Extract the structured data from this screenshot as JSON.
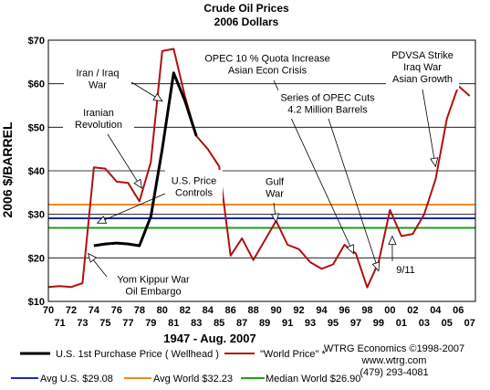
{
  "chart_data": {
    "type": "line",
    "title": "Crude Oil Prices",
    "subtitle": "2006 Dollars",
    "ylabel": "2006 $/BARREL",
    "xlabel": "1947 - Aug. 2007",
    "ylim": [
      10,
      70
    ],
    "xlim": [
      70,
      107.5
    ],
    "yticks": [
      10,
      20,
      30,
      40,
      50,
      60,
      70
    ],
    "ytick_labels": [
      "$10",
      "$20",
      "$30",
      "$40",
      "$50",
      "$60",
      "$70"
    ],
    "xtick_labels_top": [
      "70",
      "72",
      "74",
      "76",
      "78",
      "80",
      "82",
      "84",
      "86",
      "88",
      "90",
      "92",
      "94",
      "96",
      "98",
      "00",
      "02",
      "04",
      "06"
    ],
    "xtick_labels_bottom": [
      "71",
      "73",
      "75",
      "77",
      "79",
      "81",
      "83",
      "85",
      "87",
      "89",
      "91",
      "93",
      "95",
      "97",
      "99",
      "01",
      "03",
      "05",
      "07"
    ],
    "grid": true,
    "series": [
      {
        "name": "U.S. 1st Purchase Price ( Wellhead )",
        "color": "#000000",
        "points": [
          [
            74,
            22.8
          ],
          [
            75,
            23.2
          ],
          [
            76,
            23.4
          ],
          [
            77,
            23.2
          ],
          [
            78,
            22.8
          ],
          [
            79,
            29.5
          ],
          [
            80,
            45
          ],
          [
            81,
            62.5
          ],
          [
            82,
            56
          ],
          [
            83,
            48
          ]
        ]
      },
      {
        "name": "\"World Price\" *",
        "color": "#b01010",
        "points": [
          [
            70,
            13.3
          ],
          [
            71,
            13.5
          ],
          [
            72,
            13.3
          ],
          [
            73,
            14.2
          ],
          [
            74,
            40.8
          ],
          [
            75,
            40.5
          ],
          [
            76,
            37.5
          ],
          [
            77,
            37.2
          ],
          [
            78,
            33
          ],
          [
            79,
            42
          ],
          [
            80,
            67.5
          ],
          [
            81,
            68
          ],
          [
            82,
            57
          ],
          [
            83,
            48
          ],
          [
            84,
            45
          ],
          [
            85,
            41
          ],
          [
            86,
            20.5
          ],
          [
            87,
            24.5
          ],
          [
            88,
            19.5
          ],
          [
            89,
            24
          ],
          [
            90,
            28.5
          ],
          [
            91,
            23
          ],
          [
            92,
            22
          ],
          [
            93,
            19
          ],
          [
            94,
            17.5
          ],
          [
            95,
            18.5
          ],
          [
            96,
            23
          ],
          [
            97,
            21
          ],
          [
            98,
            13.2
          ],
          [
            99,
            19
          ],
          [
            100,
            31
          ],
          [
            101,
            25
          ],
          [
            102,
            25.5
          ],
          [
            103,
            30
          ],
          [
            104,
            38
          ],
          [
            105,
            52
          ],
          [
            106,
            59.5
          ],
          [
            107,
            57.2
          ]
        ]
      }
    ],
    "reference_lines": [
      {
        "label": "Avg U.S. $29.08",
        "value": 29.08,
        "color": "#1c2aa8"
      },
      {
        "label": "Avg World $32.23",
        "value": 32.23,
        "color": "#f28a1c"
      },
      {
        "label": "Median World  $26.90",
        "value": 26.9,
        "color": "#1f9e1f"
      }
    ],
    "annotations": [
      {
        "lines": [
          "Iran / Iraq",
          "War"
        ]
      },
      {
        "lines": [
          "Iranian",
          "Revolution"
        ]
      },
      {
        "lines": [
          "U.S. Price",
          "Controls"
        ]
      },
      {
        "lines": [
          "Yom Kippur War",
          "Oil Embargo"
        ]
      },
      {
        "lines": [
          "OPEC 10 % Quota Increase",
          "Asian Econ Crisis"
        ]
      },
      {
        "lines": [
          "Series of OPEC Cuts",
          "4.2 Million Barrels"
        ]
      },
      {
        "lines": [
          "Gulf",
          "War"
        ]
      },
      {
        "lines": [
          "9/11"
        ]
      },
      {
        "lines": [
          "PDVSA Strike",
          "Iraq War",
          "Asian Growth"
        ]
      }
    ],
    "source_lines": [
      "WTRG Economics  ©1998-2007",
      "www.wtrg.com",
      "(479) 293-4081"
    ]
  }
}
